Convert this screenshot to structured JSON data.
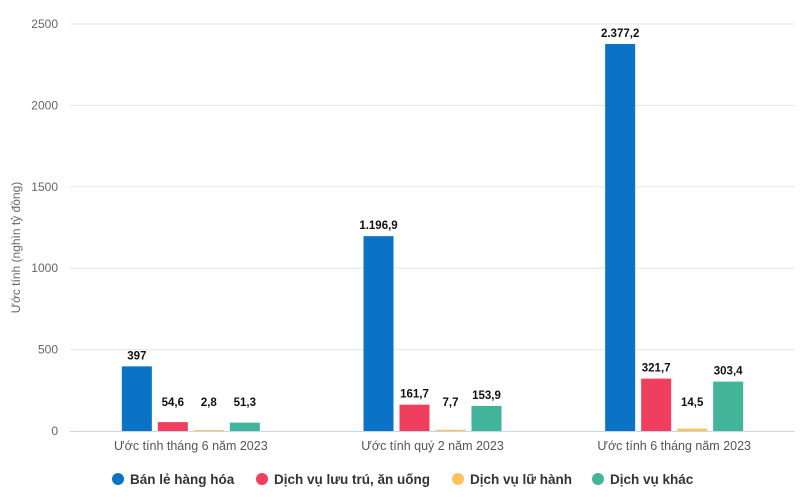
{
  "chart_data": {
    "type": "bar",
    "ylabel": "Ước tính (nghìn tỷ đồng)",
    "xlabel": "",
    "ylim": [
      0,
      2500
    ],
    "yticks": [
      "0",
      "500",
      "1000",
      "1500",
      "2000",
      "2500"
    ],
    "ytick_values": [
      0,
      500,
      1000,
      1500,
      2000,
      2500
    ],
    "grid": true,
    "legend_position": "bottom",
    "categories": [
      "Ước tính tháng 6 năm 2023",
      "Ước tính quý 2 năm 2023",
      "Ước tính 6 tháng năm 2023"
    ],
    "series": [
      {
        "name": "Bán lẻ hàng hóa",
        "color": "#0a73c6",
        "values": [
          397,
          1196.9,
          2377.2
        ],
        "labels": [
          "397",
          "1.196,9",
          "2.377,2"
        ]
      },
      {
        "name": "Dịch vụ lưu trú, ăn uống",
        "color": "#f03e5e",
        "values": [
          54.6,
          161.7,
          321.7
        ],
        "labels": [
          "54,6",
          "161,7",
          "321,7"
        ]
      },
      {
        "name": "Dịch vụ lữ hành",
        "color": "#ffc35a",
        "values": [
          2.8,
          7.7,
          14.5
        ],
        "labels": [
          "2,8",
          "7,7",
          "14,5"
        ]
      },
      {
        "name": "Dịch vụ khác",
        "color": "#42b49a",
        "values": [
          51.3,
          153.9,
          303.4
        ],
        "labels": [
          "51,3",
          "153,9",
          "303,4"
        ]
      }
    ]
  }
}
